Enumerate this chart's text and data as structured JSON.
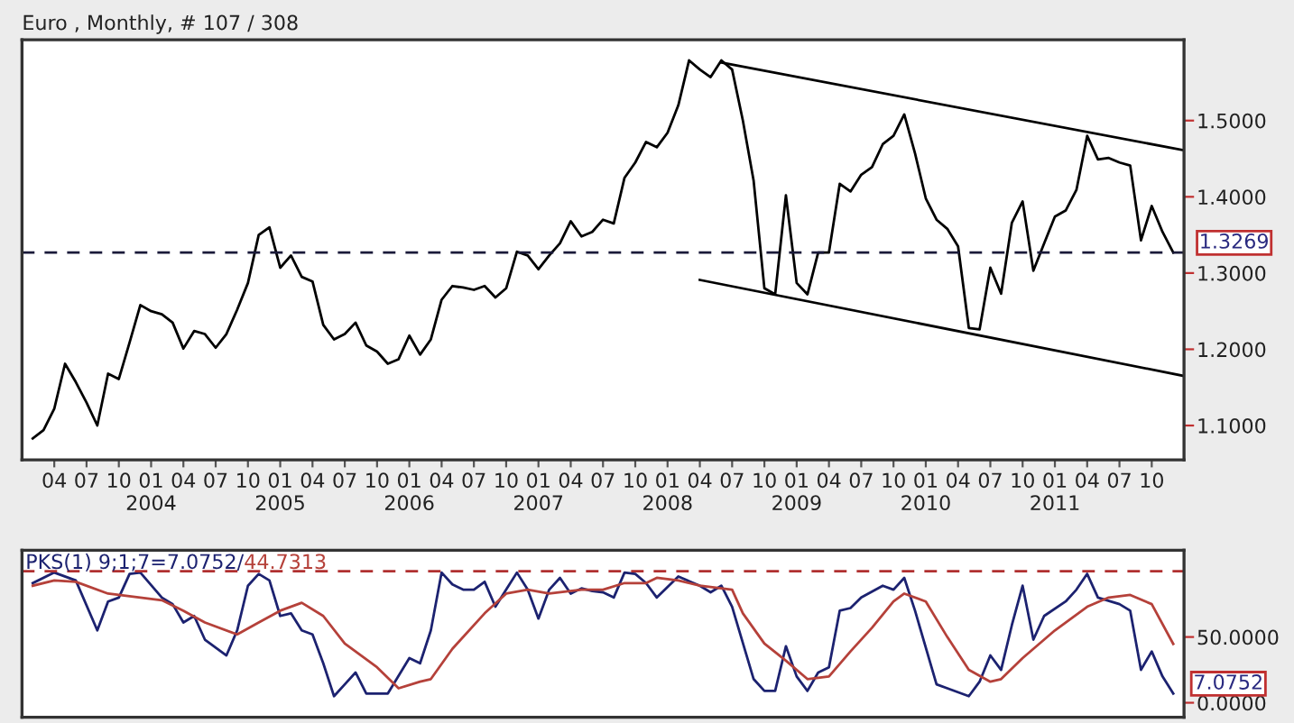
{
  "chart_data": [
    {
      "type": "line",
      "title": "Euro , Monthly, # 107 / 308",
      "xlim": [
        "2003-01",
        "2012-01"
      ],
      "ylim": [
        1.055,
        1.606
      ],
      "xticks": [
        {
          "value": "2003-04",
          "label": "04"
        },
        {
          "value": "2003-07",
          "label": "07"
        },
        {
          "value": "2003-10",
          "label": "10"
        },
        {
          "value": "2004-01",
          "label": "01\n2004"
        },
        {
          "value": "2004-04",
          "label": "04"
        },
        {
          "value": "2004-07",
          "label": "07"
        },
        {
          "value": "2004-10",
          "label": "10"
        },
        {
          "value": "2005-01",
          "label": "01\n2005"
        },
        {
          "value": "2005-04",
          "label": "04"
        },
        {
          "value": "2005-07",
          "label": "07"
        },
        {
          "value": "2005-10",
          "label": "10"
        },
        {
          "value": "2006-01",
          "label": "01\n2006"
        },
        {
          "value": "2006-04",
          "label": "04"
        },
        {
          "value": "2006-07",
          "label": "07"
        },
        {
          "value": "2006-10",
          "label": "10"
        },
        {
          "value": "2007-01",
          "label": "01\n2007"
        },
        {
          "value": "2007-04",
          "label": "04"
        },
        {
          "value": "2007-07",
          "label": "07"
        },
        {
          "value": "2007-10",
          "label": "10"
        },
        {
          "value": "2008-01",
          "label": "01\n2008"
        },
        {
          "value": "2008-04",
          "label": "04"
        },
        {
          "value": "2008-07",
          "label": "07"
        },
        {
          "value": "2008-10",
          "label": "10"
        },
        {
          "value": "2009-01",
          "label": "01\n2009"
        },
        {
          "value": "2009-04",
          "label": "04"
        },
        {
          "value": "2009-07",
          "label": "07"
        },
        {
          "value": "2009-10",
          "label": "10"
        },
        {
          "value": "2010-01",
          "label": "01\n2010"
        },
        {
          "value": "2010-04",
          "label": "04"
        },
        {
          "value": "2010-07",
          "label": "07"
        },
        {
          "value": "2010-10",
          "label": "10"
        },
        {
          "value": "2011-01",
          "label": "01\n2011"
        },
        {
          "value": "2011-04",
          "label": "04"
        },
        {
          "value": "2011-07",
          "label": "07"
        },
        {
          "value": "2011-10",
          "label": "10"
        }
      ],
      "yticks": [
        {
          "value": 1.1,
          "label": "1.1000"
        },
        {
          "value": 1.2,
          "label": "1.2000"
        },
        {
          "value": 1.3,
          "label": "1.3000"
        },
        {
          "value": 1.4,
          "label": "1.4000"
        },
        {
          "value": 1.5,
          "label": "1.5000"
        }
      ],
      "grid": false,
      "legend": false,
      "marker": "none",
      "line_style": "solid",
      "ref_lines": [
        {
          "axis": "y",
          "value": 1.3269,
          "label": "1.3269",
          "color": "#1a1a3a",
          "line_style": "dashed"
        }
      ],
      "series": [
        {
          "color": "#000000",
          "x": [
            "2003-02",
            "2003-03",
            "2003-04",
            "2003-05",
            "2003-06",
            "2003-07",
            "2003-08",
            "2003-09",
            "2003-10",
            "2003-11",
            "2003-12",
            "2004-01",
            "2004-02",
            "2004-03",
            "2004-04",
            "2004-05",
            "2004-06",
            "2004-07",
            "2004-08",
            "2004-09",
            "2004-10",
            "2004-11",
            "2004-12",
            "2005-01",
            "2005-02",
            "2005-03",
            "2005-04",
            "2005-05",
            "2005-06",
            "2005-07",
            "2005-08",
            "2005-09",
            "2005-10",
            "2005-11",
            "2005-12",
            "2006-01",
            "2006-02",
            "2006-03",
            "2006-04",
            "2006-05",
            "2006-06",
            "2006-07",
            "2006-08",
            "2006-09",
            "2006-10",
            "2006-11",
            "2006-12",
            "2007-01",
            "2007-02",
            "2007-03",
            "2007-04",
            "2007-05",
            "2007-06",
            "2007-07",
            "2007-08",
            "2007-09",
            "2007-10",
            "2007-11",
            "2007-12",
            "2008-01",
            "2008-02",
            "2008-03",
            "2008-04",
            "2008-05",
            "2008-06",
            "2008-07",
            "2008-08",
            "2008-09",
            "2008-10",
            "2008-11",
            "2008-12",
            "2009-01",
            "2009-02",
            "2009-03",
            "2009-04",
            "2009-05",
            "2009-06",
            "2009-07",
            "2009-08",
            "2009-09",
            "2009-10",
            "2009-11",
            "2009-12",
            "2010-01",
            "2010-02",
            "2010-03",
            "2010-04",
            "2010-05",
            "2010-06",
            "2010-07",
            "2010-08",
            "2010-09",
            "2010-10",
            "2010-11",
            "2010-12",
            "2011-01",
            "2011-02",
            "2011-03",
            "2011-04",
            "2011-05",
            "2011-06",
            "2011-07",
            "2011-08",
            "2011-09",
            "2011-10",
            "2011-11",
            "2011-12"
          ],
          "values": [
            1.083,
            1.094,
            1.122,
            1.181,
            1.157,
            1.13,
            1.1,
            1.168,
            1.161,
            1.209,
            1.258,
            1.25,
            1.246,
            1.235,
            1.201,
            1.224,
            1.22,
            1.202,
            1.22,
            1.252,
            1.287,
            1.35,
            1.36,
            1.307,
            1.323,
            1.295,
            1.289,
            1.232,
            1.213,
            1.22,
            1.235,
            1.205,
            1.197,
            1.181,
            1.187,
            1.218,
            1.193,
            1.213,
            1.265,
            1.283,
            1.281,
            1.278,
            1.283,
            1.268,
            1.28,
            1.328,
            1.323,
            1.305,
            1.323,
            1.339,
            1.368,
            1.348,
            1.354,
            1.37,
            1.365,
            1.425,
            1.445,
            1.472,
            1.465,
            1.484,
            1.52,
            1.579,
            1.567,
            1.557,
            1.579,
            1.567,
            1.5,
            1.421,
            1.28,
            1.272,
            1.402,
            1.287,
            1.272,
            1.327,
            1.327,
            1.417,
            1.407,
            1.429,
            1.439,
            1.469,
            1.48,
            1.508,
            1.457,
            1.398,
            1.37,
            1.358,
            1.335,
            1.228,
            1.226,
            1.307,
            1.273,
            1.366,
            1.394,
            1.303,
            1.339,
            1.374,
            1.382,
            1.409,
            1.48,
            1.449,
            1.451,
            1.445,
            1.441,
            1.343,
            1.388,
            1.354,
            1.3269
          ]
        },
        {
          "color": "#000000",
          "x": [
            "2008-06",
            "2012-01"
          ],
          "values": [
            1.576,
            1.461
          ]
        },
        {
          "color": "#000000",
          "x": [
            "2008-04",
            "2012-01"
          ],
          "values": [
            1.291,
            1.165
          ]
        }
      ]
    },
    {
      "type": "line",
      "title": "PKS(1) 9;1;7=7.0752/",
      "xlim": [
        "2003-01",
        "2012-01"
      ],
      "ylim": [
        -11,
        116
      ],
      "yticks": [
        {
          "value": 0,
          "label": "0.0000"
        },
        {
          "value": 50,
          "label": "50.0000"
        }
      ],
      "tick_labels": "y",
      "grid": false,
      "legend": false,
      "marker": "none",
      "line_style": "solid",
      "annotations": [
        "44.7313",
        {
          "text": "7.0752",
          "x": "2011-12",
          "y": 7.0752
        }
      ],
      "ref_lines": [
        {
          "axis": "y",
          "value": 100,
          "color": "#b03030",
          "line_style": "dashed"
        }
      ],
      "series": [
        {
          "color": "#1c2270",
          "x": [
            "2003-02",
            "2003-04",
            "2003-06",
            "2003-08",
            "2003-09",
            "2003-10",
            "2003-11",
            "2003-12",
            "2004-02",
            "2004-03",
            "2004-04",
            "2004-05",
            "2004-06",
            "2004-08",
            "2004-09",
            "2004-10",
            "2004-11",
            "2004-12",
            "2005-01",
            "2005-02",
            "2005-03",
            "2005-04",
            "2005-05",
            "2005-06",
            "2005-07",
            "2005-08",
            "2005-09",
            "2005-11",
            "2006-01",
            "2006-02",
            "2006-03",
            "2006-04",
            "2006-05",
            "2006-06",
            "2006-07",
            "2006-08",
            "2006-09",
            "2006-10",
            "2006-11",
            "2006-12",
            "2007-01",
            "2007-02",
            "2007-03",
            "2007-04",
            "2007-05",
            "2007-06",
            "2007-07",
            "2007-08",
            "2007-09",
            "2007-10",
            "2007-11",
            "2007-12",
            "2008-02",
            "2008-04",
            "2008-05",
            "2008-06",
            "2008-07",
            "2008-09",
            "2008-10",
            "2008-11",
            "2008-12",
            "2009-01",
            "2009-02",
            "2009-03",
            "2009-04",
            "2009-05",
            "2009-06",
            "2009-07",
            "2009-09",
            "2009-10",
            "2009-11",
            "2009-12",
            "2010-02",
            "2010-03",
            "2010-05",
            "2010-06",
            "2010-07",
            "2010-08",
            "2010-09",
            "2010-10",
            "2010-11",
            "2010-12",
            "2011-02",
            "2011-03",
            "2011-04",
            "2011-05",
            "2011-07",
            "2011-08",
            "2011-09",
            "2011-10",
            "2011-11",
            "2011-12"
          ],
          "values": [
            91,
            99,
            93,
            55,
            77,
            80,
            98,
            99,
            80,
            75,
            61,
            66,
            48,
            36,
            55,
            89,
            98,
            93,
            66,
            68,
            55,
            52,
            30,
            5,
            14,
            23,
            7,
            7,
            34,
            30,
            55,
            99,
            90,
            86,
            86,
            92,
            73,
            86,
            99,
            86,
            64,
            86,
            95,
            83,
            87,
            85,
            84,
            80,
            99,
            98,
            91,
            80,
            96,
            89,
            84,
            89,
            73,
            18,
            9,
            9,
            43,
            20,
            9,
            23,
            27,
            70,
            72,
            80,
            89,
            86,
            95,
            70,
            14,
            11,
            5,
            16,
            36,
            25,
            59,
            89,
            48,
            66,
            77,
            86,
            98,
            80,
            75,
            70,
            25,
            39,
            20,
            7.0752
          ]
        },
        {
          "color": "#b5413a",
          "x": [
            "2003-02",
            "2003-04",
            "2003-06",
            "2003-09",
            "2003-12",
            "2004-02",
            "2004-04",
            "2004-06",
            "2004-09",
            "2004-11",
            "2005-01",
            "2005-03",
            "2005-05",
            "2005-07",
            "2005-10",
            "2005-12",
            "2006-02",
            "2006-03",
            "2006-05",
            "2006-08",
            "2006-10",
            "2006-12",
            "2007-02",
            "2007-05",
            "2007-07",
            "2007-09",
            "2007-11",
            "2007-12",
            "2008-02",
            "2008-04",
            "2008-07",
            "2008-08",
            "2008-10",
            "2008-12",
            "2009-02",
            "2009-04",
            "2009-06",
            "2009-08",
            "2009-10",
            "2009-11",
            "2010-01",
            "2010-03",
            "2010-05",
            "2010-07",
            "2010-08",
            "2010-10",
            "2011-01",
            "2011-04",
            "2011-06",
            "2011-08",
            "2011-10",
            "2011-12"
          ],
          "values": [
            89,
            93,
            92,
            83,
            80,
            78,
            70,
            61,
            52,
            61,
            70,
            76,
            66,
            45,
            27,
            11,
            16,
            18,
            41,
            68,
            83,
            86,
            83,
            86,
            86,
            91,
            91,
            95,
            93,
            89,
            86,
            68,
            45,
            32,
            18,
            20,
            39,
            57,
            77,
            83,
            77,
            50,
            25,
            16,
            18,
            34,
            55,
            73,
            80,
            82,
            75,
            44.7313
          ]
        }
      ]
    }
  ]
}
